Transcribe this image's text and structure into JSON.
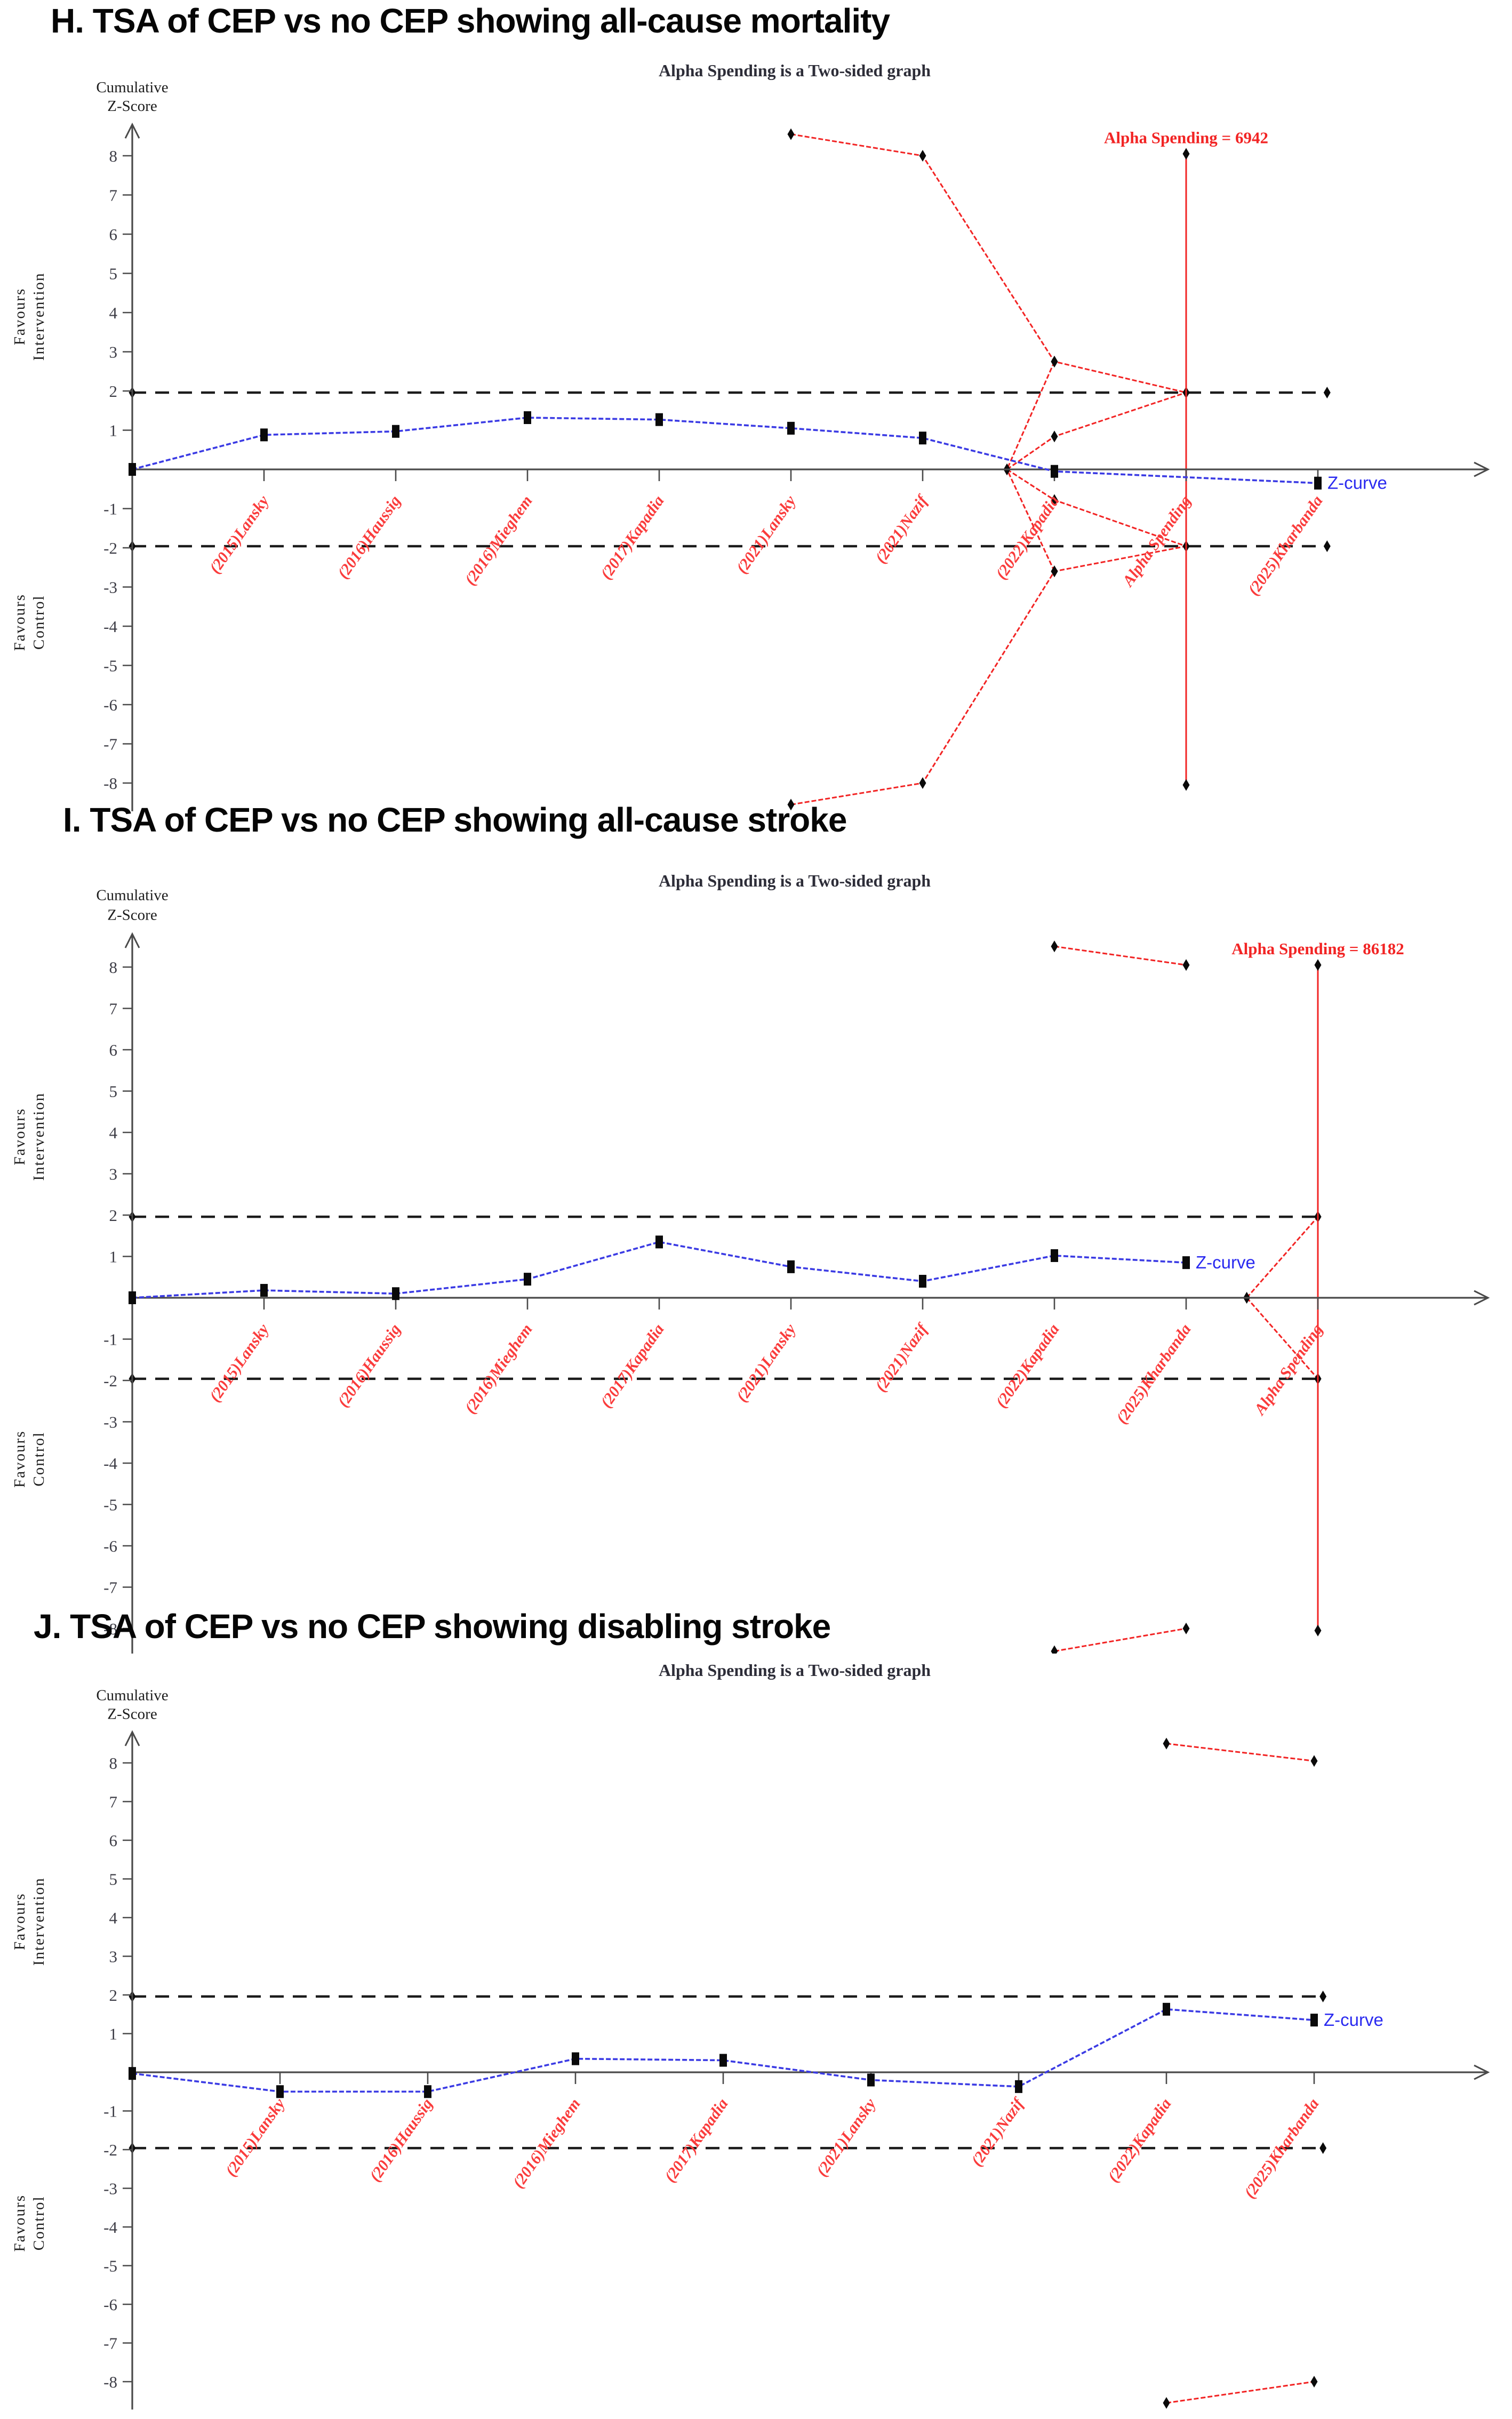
{
  "colors": {
    "boundary_red": "#f22424",
    "label_red": "#fa3b3b",
    "curve_blue": "#3b3be4",
    "zcurve_label_blue": "#2a2af0",
    "axis_gray": "#4a4a4a",
    "tick_text": "#3d3d46",
    "dashed_black": "#1b1b1b",
    "title_gray": "#2d2d38",
    "marker_black": "#0a0a0a",
    "heading_black": "#060606"
  },
  "chart_data": [
    {
      "type": "line",
      "heading": "H. TSA of CEP vs no CEP showing all-cause mortality",
      "title": "Alpha Spending is a Two-sided graph",
      "alpha_spending_label": "Alpha Spending = 6942",
      "zcurve_label": "Z-curve",
      "ylabel": [
        "Cumulative",
        "Z-Score"
      ],
      "favours_intervention": [
        "Favours",
        "Intervention"
      ],
      "favours_control": [
        "Favours",
        "Control"
      ],
      "ylim": [
        -8.8,
        8.8
      ],
      "significance_threshold": 1.96,
      "y_ticks": [
        8,
        7,
        6,
        5,
        4,
        3,
        2,
        1,
        -1,
        -2,
        -3,
        -4,
        -5,
        -6,
        -7,
        -8
      ],
      "x_labels": [
        "(2015)Lansky",
        "(2016)Haussig",
        "(2016)Mieghem",
        "(2017)Kapadia",
        "(2021)Lansky",
        "(2021)Nazif",
        "(2022)Kapadia",
        "Alpha Spending",
        "(2025)Kharbanda"
      ],
      "z_curve": {
        "x": [
          0,
          1,
          2,
          3,
          4,
          5,
          6,
          7,
          9
        ],
        "z": [
          0,
          0.88,
          0.97,
          1.32,
          1.27,
          1.05,
          0.8,
          -0.05,
          -0.35
        ]
      },
      "boundaries": [
        [
          [
            5,
            8.55
          ],
          [
            6,
            8.0
          ],
          [
            7,
            2.75
          ],
          [
            8,
            1.96
          ]
        ],
        [
          [
            7,
            2.75
          ],
          [
            6.64,
            0
          ]
        ],
        [
          [
            6.64,
            0
          ],
          [
            7,
            0.84
          ],
          [
            8,
            1.96
          ]
        ],
        [
          [
            5,
            -8.55
          ],
          [
            6,
            -8.0
          ],
          [
            7,
            -2.6
          ],
          [
            8,
            -1.96
          ]
        ],
        [
          [
            7,
            -2.6
          ],
          [
            6.64,
            0
          ]
        ],
        [
          [
            6.64,
            0
          ],
          [
            7,
            -0.78
          ],
          [
            8,
            -1.96
          ]
        ]
      ],
      "alpha_line": {
        "x": 8,
        "top": 8.05,
        "bottom": -8.05
      }
    },
    {
      "type": "line",
      "heading": "I. TSA of CEP vs no CEP showing all-cause stroke",
      "title": "Alpha Spending is a Two-sided graph",
      "alpha_spending_label": "Alpha Spending = 86182",
      "zcurve_label": "Z-curve",
      "ylabel": [
        "Cumulative",
        "Z-Score"
      ],
      "favours_intervention": [
        "Favours",
        "Intervention"
      ],
      "favours_control": [
        "Favours",
        "Control"
      ],
      "ylim": [
        -8.8,
        8.8
      ],
      "significance_threshold": 1.96,
      "y_ticks": [
        8,
        7,
        6,
        5,
        4,
        3,
        2,
        1,
        -1,
        -2,
        -3,
        -4,
        -5,
        -6,
        -7,
        -8
      ],
      "x_labels": [
        "(2015)Lansky",
        "(2016)Haussig",
        "(2016)Mieghem",
        "(2017)Kapadia",
        "(2021)Lansky",
        "(2021)Nazif",
        "(2022)Kapadia",
        "(2025)Kharbanda",
        "Alpha Spending"
      ],
      "z_curve": {
        "x": [
          0,
          1,
          2,
          3,
          4,
          5,
          6,
          7,
          8
        ],
        "z": [
          0,
          0.18,
          0.1,
          0.45,
          1.35,
          0.75,
          0.4,
          1.02,
          0.85
        ]
      },
      "boundaries": [
        [
          [
            7,
            8.5
          ],
          [
            8,
            8.05
          ]
        ],
        [
          [
            7,
            -8.55
          ],
          [
            8,
            -8.0
          ]
        ],
        [
          [
            8.46,
            0
          ],
          [
            9,
            1.96
          ]
        ],
        [
          [
            8.46,
            0
          ],
          [
            9,
            -1.96
          ]
        ]
      ],
      "alpha_line": {
        "x": 9,
        "top": 8.05,
        "bottom": -8.05
      }
    },
    {
      "type": "line",
      "heading": "J. TSA of CEP vs no CEP showing disabling stroke",
      "title": "Alpha Spending is a Two-sided graph",
      "alpha_spending_label": null,
      "zcurve_label": "Z-curve",
      "ylabel": [
        "Cumulative",
        "Z-Score"
      ],
      "favours_intervention": [
        "Favours",
        "Intervention"
      ],
      "favours_control": [
        "Favours",
        "Control"
      ],
      "ylim": [
        -8.8,
        8.8
      ],
      "significance_threshold": 1.96,
      "y_ticks": [
        8,
        7,
        6,
        5,
        4,
        3,
        2,
        1,
        -1,
        -2,
        -3,
        -4,
        -5,
        -6,
        -7,
        -8
      ],
      "x_labels": [
        "(2015)Lansky",
        "(2016)Haussig",
        "(2016)Mieghem",
        "(2017)Kapadia",
        "(2021)Lansky",
        "(2021)Nazif",
        "(2022)Kapadia",
        "(2025)Kharbanda"
      ],
      "z_curve": {
        "x": [
          0,
          1,
          2,
          3,
          4,
          5,
          6,
          7,
          8
        ],
        "z": [
          -0.03,
          -0.5,
          -0.5,
          0.35,
          0.31,
          -0.2,
          -0.37,
          1.63,
          1.35
        ]
      },
      "boundaries": [
        [
          [
            7,
            8.5
          ],
          [
            8,
            8.05
          ]
        ],
        [
          [
            7,
            -8.55
          ],
          [
            8,
            -8.0
          ]
        ]
      ],
      "alpha_line": null
    }
  ]
}
